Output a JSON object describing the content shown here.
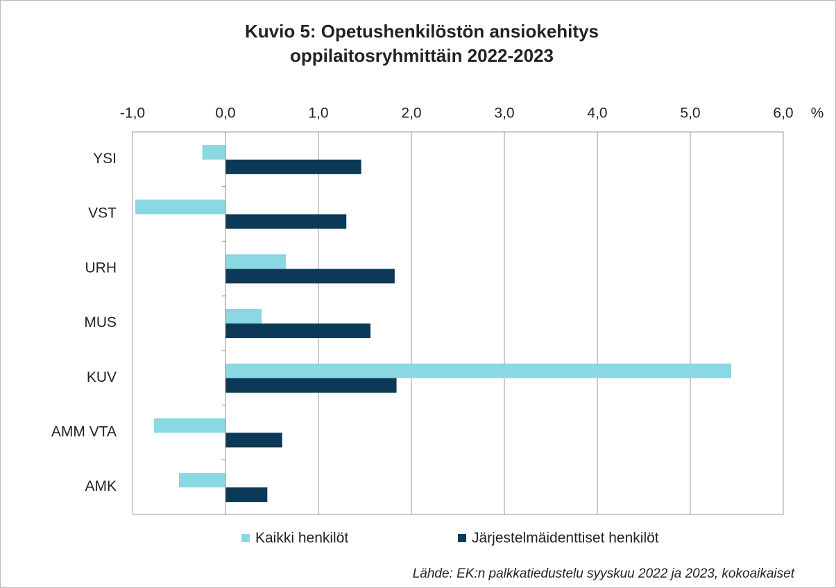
{
  "chart_data": {
    "type": "hbar",
    "title": [
      "Kuvio 5: Opetushenkilöstön ansiokehitys",
      "oppilaitosryhmittäin  2022-2023"
    ],
    "unit": "%",
    "categories": [
      "YSI",
      "VST",
      "URH",
      "MUS",
      "KUV",
      "AMM VTA",
      "AMK"
    ],
    "series": [
      {
        "name": "Kaikki henkilöt",
        "color": "#8ad8e2",
        "values": [
          -0.25,
          -0.97,
          0.65,
          0.39,
          5.44,
          -0.77,
          -0.5
        ]
      },
      {
        "name": "Järjestelmäidenttiset henkilöt",
        "color": "#0b3957",
        "values": [
          1.46,
          1.3,
          1.82,
          1.56,
          1.84,
          0.61,
          0.45
        ]
      }
    ],
    "xlim": [
      -1,
      6
    ],
    "xticks": [
      {
        "value": -1,
        "label": "-1,0"
      },
      {
        "value": 0,
        "label": "0,0"
      },
      {
        "value": 1,
        "label": "1,0"
      },
      {
        "value": 2,
        "label": "2,0"
      },
      {
        "value": 3,
        "label": "3,0"
      },
      {
        "value": 4,
        "label": "4,0"
      },
      {
        "value": 5,
        "label": "5,0"
      },
      {
        "value": 6,
        "label": "6,0"
      }
    ],
    "grid": true,
    "legend": "bottom",
    "source": "Lähde:  EK:n palkkatiedustelu syyskuu 2022 ja 2023,  kokoaikaiset"
  }
}
